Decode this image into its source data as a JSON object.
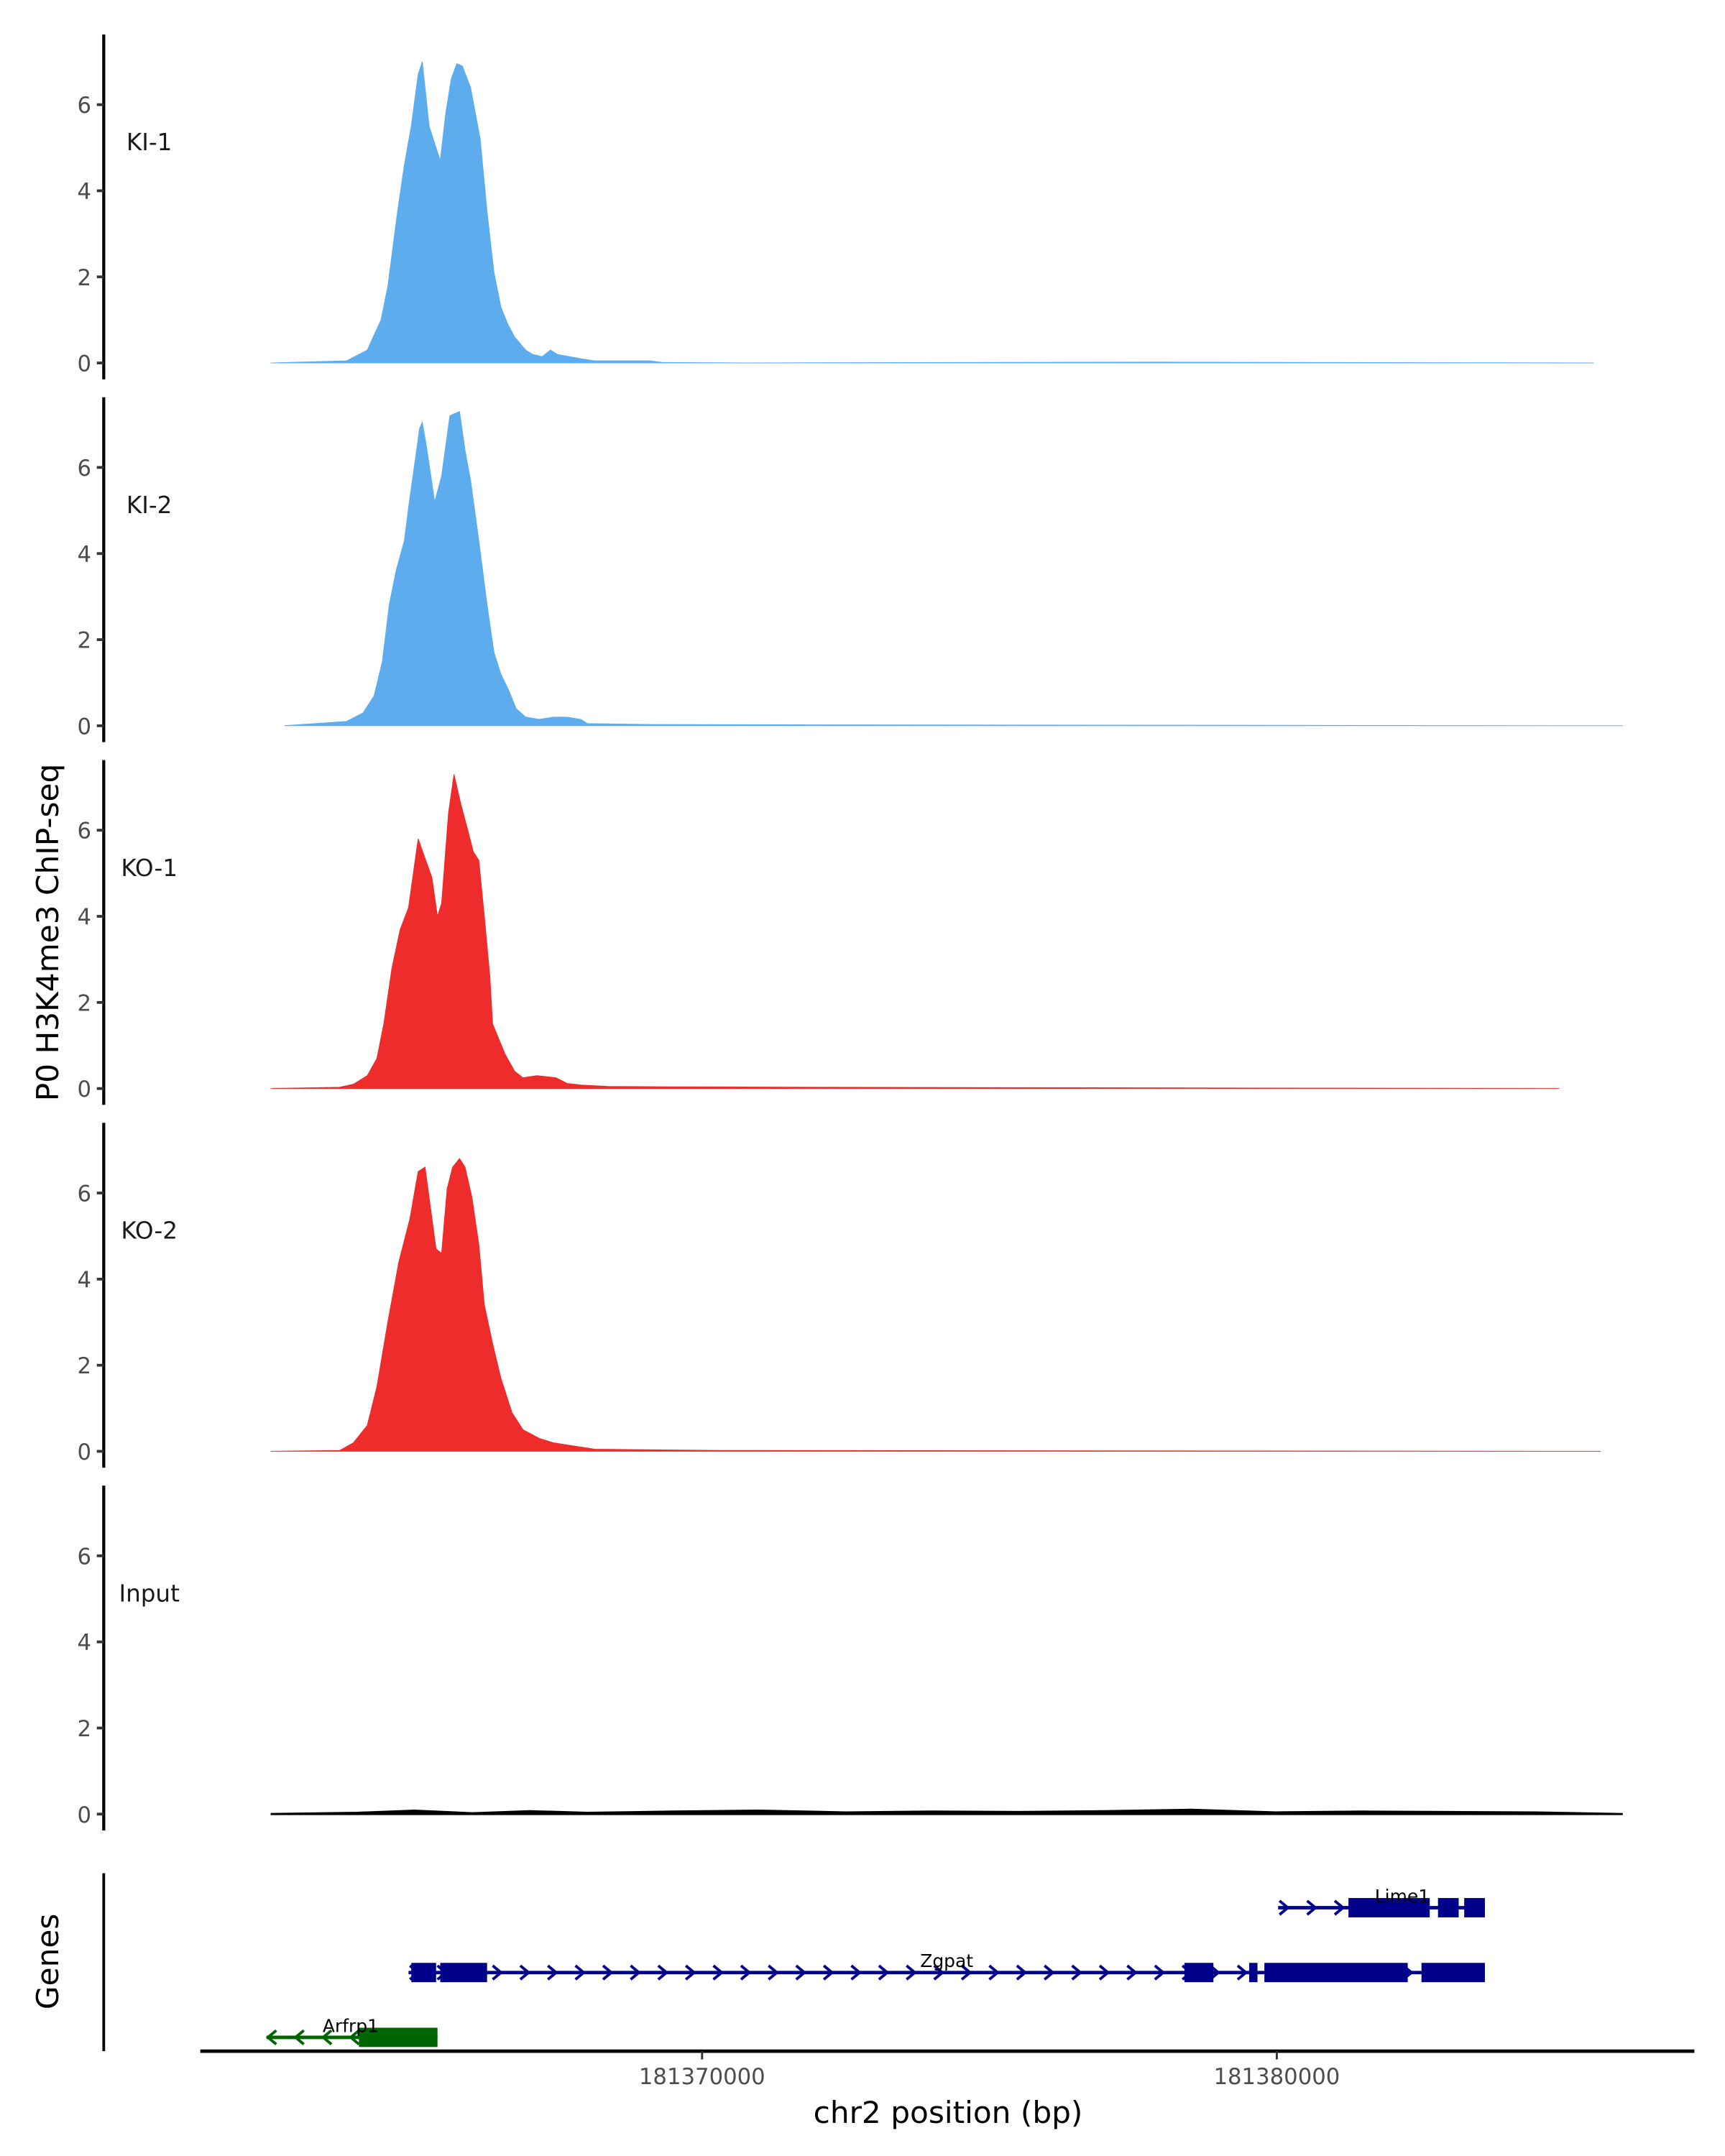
{
  "chart_data": {
    "type": "area",
    "ylabel": "P0 H3K4me3 ChIP-seq",
    "xlabel": "chr2 position (bp)",
    "genes_label": "Genes",
    "xlim": [
      181361269,
      181387266
    ],
    "ylim": [
      -0.38,
      7.63
    ],
    "x_ticks": [
      181370000,
      181380000
    ],
    "x_tick_labels": [
      "181370000",
      "181380000"
    ],
    "y_ticks": [
      0,
      2,
      4,
      6
    ],
    "y_tick_labels": [
      "0",
      "2",
      "4",
      "6"
    ],
    "grid": false,
    "series": [
      {
        "name": "KI-1",
        "color": "#5DADEE",
        "points": [
          [
            181362494,
            0
          ],
          [
            181363813,
            0.05
          ],
          [
            181364173,
            0.3
          ],
          [
            181364413,
            1.0
          ],
          [
            181364533,
            1.8
          ],
          [
            181364700,
            3.5
          ],
          [
            181364820,
            4.6
          ],
          [
            181364940,
            5.5
          ],
          [
            181365060,
            6.7
          ],
          [
            181365132,
            7.0
          ],
          [
            181365252,
            5.5
          ],
          [
            181365444,
            4.7
          ],
          [
            181365540,
            5.8
          ],
          [
            181365636,
            6.6
          ],
          [
            181365732,
            6.95
          ],
          [
            181365828,
            6.9
          ],
          [
            181365972,
            6.4
          ],
          [
            181366139,
            5.2
          ],
          [
            181366259,
            3.5
          ],
          [
            181366379,
            2.1
          ],
          [
            181366499,
            1.3
          ],
          [
            181366619,
            0.9
          ],
          [
            181366739,
            0.6
          ],
          [
            181366931,
            0.3
          ],
          [
            181367050,
            0.2
          ],
          [
            181367218,
            0.15
          ],
          [
            181367362,
            0.3
          ],
          [
            181367482,
            0.2
          ],
          [
            181367698,
            0.15
          ],
          [
            181367890,
            0.1
          ],
          [
            181368130,
            0.05
          ],
          [
            181369089,
            0.05
          ],
          [
            181369329,
            0.01
          ],
          [
            181370767,
            0
          ],
          [
            181378000,
            0.02
          ],
          [
            181381000,
            0.01
          ],
          [
            181385515,
            0
          ]
        ]
      },
      {
        "name": "KI-2",
        "color": "#5DADEE",
        "points": [
          [
            181362734,
            0
          ],
          [
            181363813,
            0.1
          ],
          [
            181364101,
            0.3
          ],
          [
            181364293,
            0.7
          ],
          [
            181364437,
            1.5
          ],
          [
            181364556,
            2.8
          ],
          [
            181364676,
            3.6
          ],
          [
            181364820,
            4.3
          ],
          [
            181364916,
            5.3
          ],
          [
            181365012,
            6.2
          ],
          [
            181365084,
            6.9
          ],
          [
            181365132,
            7.05
          ],
          [
            181365204,
            6.5
          ],
          [
            181365348,
            5.2
          ],
          [
            181365468,
            5.8
          ],
          [
            181365612,
            7.2
          ],
          [
            181365780,
            7.3
          ],
          [
            181365876,
            6.4
          ],
          [
            181365971,
            5.7
          ],
          [
            181366115,
            4.3
          ],
          [
            181366259,
            2.8
          ],
          [
            181366379,
            1.7
          ],
          [
            181366499,
            1.2
          ],
          [
            181366643,
            0.8
          ],
          [
            181366763,
            0.4
          ],
          [
            181366931,
            0.2
          ],
          [
            181367170,
            0.15
          ],
          [
            181367410,
            0.2
          ],
          [
            181367650,
            0.2
          ],
          [
            181367890,
            0.15
          ],
          [
            181368010,
            0.05
          ],
          [
            181369089,
            0.03
          ],
          [
            181372206,
            0.02
          ],
          [
            181386019,
            0
          ]
        ]
      },
      {
        "name": "KO-1",
        "color": "#EE2C2C",
        "points": [
          [
            181362494,
            0
          ],
          [
            181363693,
            0.03
          ],
          [
            181363933,
            0.1
          ],
          [
            181364173,
            0.3
          ],
          [
            181364341,
            0.7
          ],
          [
            181364461,
            1.5
          ],
          [
            181364604,
            2.8
          ],
          [
            181364748,
            3.7
          ],
          [
            181364892,
            4.2
          ],
          [
            181365060,
            5.8
          ],
          [
            181365300,
            4.9
          ],
          [
            181365396,
            4.0
          ],
          [
            181365468,
            4.3
          ],
          [
            181365588,
            6.4
          ],
          [
            181365684,
            7.3
          ],
          [
            181365804,
            6.6
          ],
          [
            181365923,
            6.0
          ],
          [
            181366019,
            5.5
          ],
          [
            181366115,
            5.3
          ],
          [
            181366211,
            4.0
          ],
          [
            181366307,
            2.6
          ],
          [
            181366355,
            1.5
          ],
          [
            181366571,
            0.8
          ],
          [
            181366739,
            0.4
          ],
          [
            181366883,
            0.25
          ],
          [
            181367122,
            0.3
          ],
          [
            181367266,
            0.28
          ],
          [
            181367458,
            0.25
          ],
          [
            181367650,
            0.12
          ],
          [
            181367890,
            0.08
          ],
          [
            181368369,
            0.05
          ],
          [
            181369329,
            0.04
          ],
          [
            181371966,
            0.03
          ],
          [
            181384916,
            0
          ]
        ]
      },
      {
        "name": "KO-2",
        "color": "#EE2C2C",
        "points": [
          [
            181362494,
            0
          ],
          [
            181363693,
            0.02
          ],
          [
            181363933,
            0.2
          ],
          [
            181364173,
            0.6
          ],
          [
            181364341,
            1.5
          ],
          [
            181364532,
            3.0
          ],
          [
            181364724,
            4.4
          ],
          [
            181364916,
            5.4
          ],
          [
            181365060,
            6.5
          ],
          [
            181365180,
            6.6
          ],
          [
            181365372,
            4.7
          ],
          [
            181365468,
            4.6
          ],
          [
            181365564,
            6.1
          ],
          [
            181365660,
            6.6
          ],
          [
            181365780,
            6.8
          ],
          [
            181365876,
            6.6
          ],
          [
            181365995,
            5.9
          ],
          [
            181366115,
            4.8
          ],
          [
            181366211,
            3.4
          ],
          [
            181366355,
            2.5
          ],
          [
            181366499,
            1.7
          ],
          [
            181366691,
            0.9
          ],
          [
            181366883,
            0.5
          ],
          [
            181367170,
            0.3
          ],
          [
            181367410,
            0.2
          ],
          [
            181367650,
            0.15
          ],
          [
            181367890,
            0.1
          ],
          [
            181368130,
            0.05
          ],
          [
            181368849,
            0.04
          ],
          [
            181370288,
            0.02
          ],
          [
            181385635,
            0
          ]
        ]
      },
      {
        "name": "Input",
        "color": "#000000",
        "points": [
          [
            181362494,
            0
          ],
          [
            181364000,
            0.03
          ],
          [
            181365000,
            0.08
          ],
          [
            181366000,
            0.02
          ],
          [
            181367000,
            0.07
          ],
          [
            181368000,
            0.03
          ],
          [
            181369500,
            0.06
          ],
          [
            181371000,
            0.08
          ],
          [
            181372500,
            0.04
          ],
          [
            181374000,
            0.06
          ],
          [
            181375500,
            0.05
          ],
          [
            181377000,
            0.07
          ],
          [
            181378500,
            0.1
          ],
          [
            181380000,
            0.04
          ],
          [
            181381500,
            0.06
          ],
          [
            181383000,
            0.05
          ],
          [
            181384500,
            0.04
          ],
          [
            181386019,
            0
          ]
        ]
      }
    ],
    "genes": [
      {
        "name": "Lime1",
        "strand": "+",
        "color": "#00008B",
        "row": 0,
        "start": 181380024,
        "end": 181383621,
        "exons": [
          [
            181381247,
            181382661
          ],
          [
            181382805,
            181383165
          ],
          [
            181383261,
            181383621
          ]
        ]
      },
      {
        "name": "Zgpat",
        "strand": "+",
        "color": "#00008B",
        "row": 1,
        "start": 181364892,
        "end": 181383621,
        "exons": [
          [
            181364940,
            181365372
          ],
          [
            181365444,
            181366259
          ],
          [
            181378393,
            181378897
          ],
          [
            181379520,
            181379664
          ],
          [
            181379784,
            181382278
          ],
          [
            181382518,
            181383621
          ]
        ]
      },
      {
        "name": "Arfrp1",
        "strand": "-",
        "color": "#006400",
        "row": 2,
        "start": 181362422,
        "end": 181365396,
        "exons": [
          [
            181364029,
            181365396
          ]
        ]
      }
    ]
  }
}
